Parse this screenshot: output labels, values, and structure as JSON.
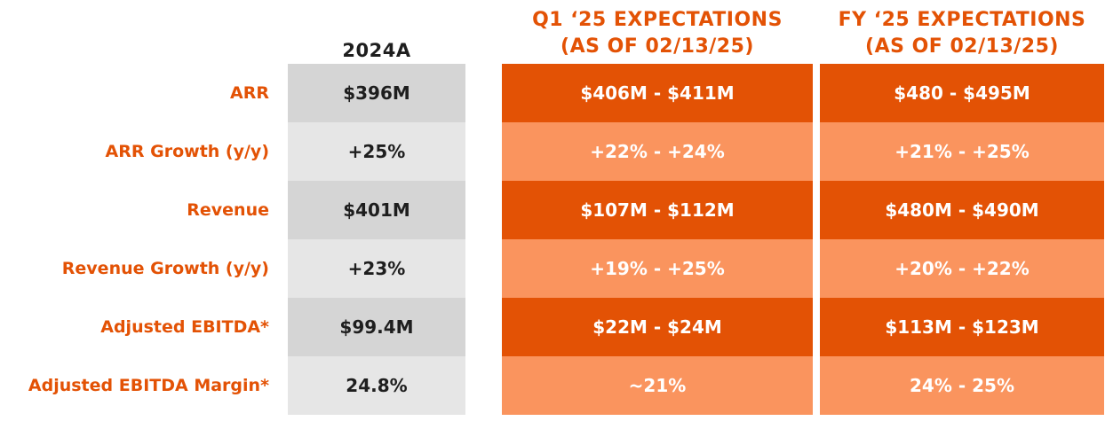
{
  "headers": {
    "actual": "2024A",
    "q1_line1": "Q1 ‘25 EXPECTATIONS",
    "q1_line2": "(AS OF 02/13/25)",
    "fy_line1": "FY ‘25 EXPECTATIONS",
    "fy_line2": "(AS OF 02/13/25)"
  },
  "rows": [
    {
      "label": "ARR",
      "actual": "$396M",
      "q1": "$406M - $411M",
      "fy": "$480 - $495M"
    },
    {
      "label": "ARR Growth (y/y)",
      "actual": "+25%",
      "q1": "+22% - +24%",
      "fy": "+21% - +25%"
    },
    {
      "label": "Revenue",
      "actual": "$401M",
      "q1": "$107M - $112M",
      "fy": "$480M - $490M"
    },
    {
      "label": "Revenue Growth (y/y)",
      "actual": "+23%",
      "q1": "+19% - +25%",
      "fy": "+20% - +22%"
    },
    {
      "label": "Adjusted EBITDA*",
      "actual": "$99.4M",
      "q1": "$22M - $24M",
      "fy": "$113M - $123M"
    },
    {
      "label": "Adjusted EBITDA Margin*",
      "actual": "24.8%",
      "q1": "~21%",
      "fy": "24% - 25%"
    }
  ],
  "colors": {
    "accent": "#e35205",
    "accent_light": "#fa945e",
    "grey_dark": "#d5d5d5",
    "grey_light": "#e6e6e6",
    "text_dark": "#1e1e1e"
  }
}
